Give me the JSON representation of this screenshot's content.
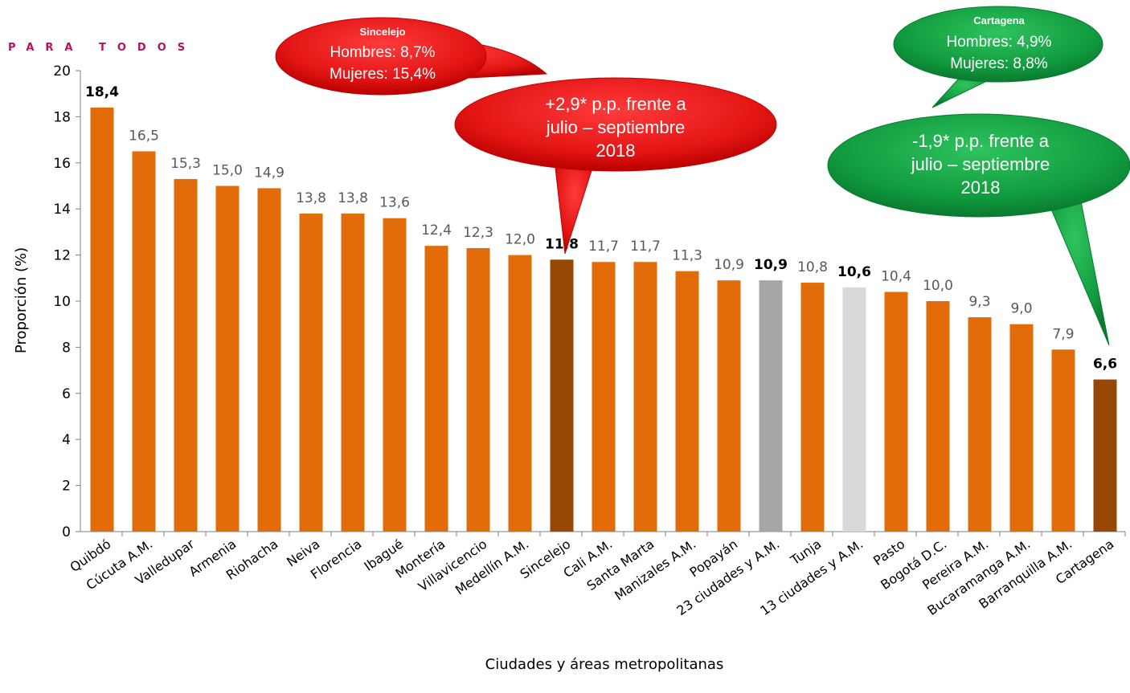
{
  "brand_text": "PARA TODOS",
  "chart_data": {
    "type": "bar",
    "categories": [
      "Quibdó",
      "Cúcuta A.M.",
      "Valledupar",
      "Armenia",
      "Riohacha",
      "Neiva",
      "Florencia",
      "Ibagué",
      "Montería",
      "Villavicencio",
      "Medellín A.M.",
      "Sincelejo",
      "Cali A.M.",
      "Santa Marta",
      "Manizales A.M.",
      "Popayán",
      "23 ciudades y A.M.",
      "Tunja",
      "13 ciudades y A.M.",
      "Pasto",
      "Bogotá D.C.",
      "Pereira A.M.",
      "Bucaramanga A.M.",
      "Barranquilla A.M.",
      "Cartagena"
    ],
    "values": [
      18.4,
      16.5,
      15.3,
      15.0,
      14.9,
      13.8,
      13.8,
      13.6,
      12.4,
      12.3,
      12.0,
      11.8,
      11.7,
      11.7,
      11.3,
      10.9,
      10.9,
      10.8,
      10.6,
      10.4,
      10.0,
      9.3,
      9.0,
      7.9,
      6.6
    ],
    "value_labels": [
      "18,4",
      "16,5",
      "15,3",
      "15,0",
      "14,9",
      "13,8",
      "13,8",
      "13,6",
      "12,4",
      "12,3",
      "12,0",
      "11,8",
      "11,7",
      "11,7",
      "11,3",
      "10,9",
      "10,9",
      "10,8",
      "10,6",
      "10,4",
      "10,0",
      "9,3",
      "9,0",
      "7,9",
      "6,6"
    ],
    "bold_labels": [
      "Quibdó",
      "Sincelejo",
      "23 ciudades y A.M.",
      "13 ciudades y A.M.",
      "Cartagena"
    ],
    "colors": {
      "default": "#e36c0a",
      "highlight": "#974706",
      "total_23": "#a6a6a6",
      "total_13": "#d9d9d9"
    },
    "highlight_categories": [
      "Sincelejo",
      "Cartagena"
    ],
    "ylabel": "Proporción (%)",
    "xlabel": "Ciudades y áreas metropolitanas",
    "ylim": [
      0,
      20
    ],
    "yticks": [
      0,
      2,
      4,
      6,
      8,
      10,
      12,
      14,
      16,
      18,
      20
    ],
    "grid": false,
    "annotations": {
      "sincelejo_gender": {
        "title": "Sincelejo",
        "line1": "Hombres: 8,7%",
        "line2": "Mujeres: 15,4%",
        "color": "#e31414"
      },
      "sincelejo_change": {
        "line1": "+2,9* p.p. frente a",
        "line2": "julio – septiembre",
        "line3": "2018",
        "color": "#e31414"
      },
      "cartagena_gender": {
        "title": "Cartagena",
        "line1": "Hombres: 4,9%",
        "line2": "Mujeres: 8,8%",
        "color": "#119b3f"
      },
      "cartagena_change": {
        "line1": "-1,9* p.p. frente a",
        "line2": "julio – septiembre",
        "line3": "2018",
        "color": "#119b3f"
      }
    }
  }
}
